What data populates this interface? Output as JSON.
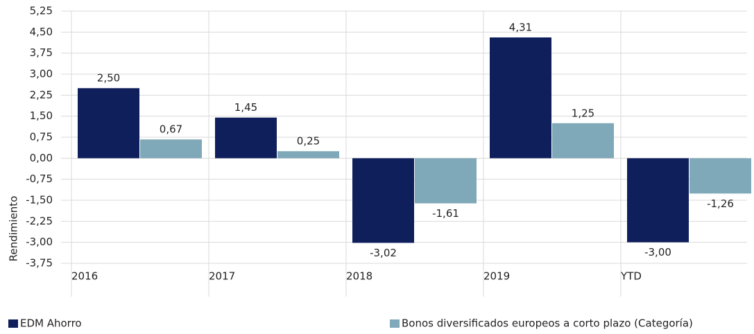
{
  "chart_data": {
    "type": "bar",
    "y_label": "Rendimiento",
    "categories": [
      "2016",
      "2017",
      "2018",
      "2019",
      "YTD"
    ],
    "series": [
      {
        "name": "EDM Ahorro",
        "color": "#0f1f5c",
        "values": [
          2.5,
          1.45,
          -3.02,
          4.31,
          -3.0
        ],
        "value_labels": [
          "2,50",
          "1,45",
          "-3,02",
          "4,31",
          "-3,00"
        ]
      },
      {
        "name": "Bonos diversificados europeos a corto plazo (Categoría)",
        "color": "#7fa8b8",
        "values": [
          0.67,
          0.25,
          -1.61,
          1.25,
          -1.26
        ],
        "value_labels": [
          "0,67",
          "0,25",
          "-1,61",
          "1,25",
          "-1,26"
        ]
      }
    ],
    "ylim": [
      -3.75,
      5.25
    ],
    "yticks": [
      {
        "value": 5.25,
        "label": "5,25"
      },
      {
        "value": 4.5,
        "label": "4,50"
      },
      {
        "value": 3.75,
        "label": "3,75"
      },
      {
        "value": 3,
        "label": "3,00"
      },
      {
        "value": 2.25,
        "label": "2,25"
      },
      {
        "value": 1.5,
        "label": "1,50"
      },
      {
        "value": 0.75,
        "label": "0,75"
      },
      {
        "value": 0,
        "label": "0,00"
      },
      {
        "value": -0.75,
        "label": "-0,75"
      },
      {
        "value": -1.5,
        "label": "-1,50"
      },
      {
        "value": -2.25,
        "label": "-2,25"
      },
      {
        "value": -3,
        "label": "-3,00"
      },
      {
        "value": -3.75,
        "label": "-3,75"
      }
    ],
    "grid": true,
    "legend": "bottom"
  }
}
